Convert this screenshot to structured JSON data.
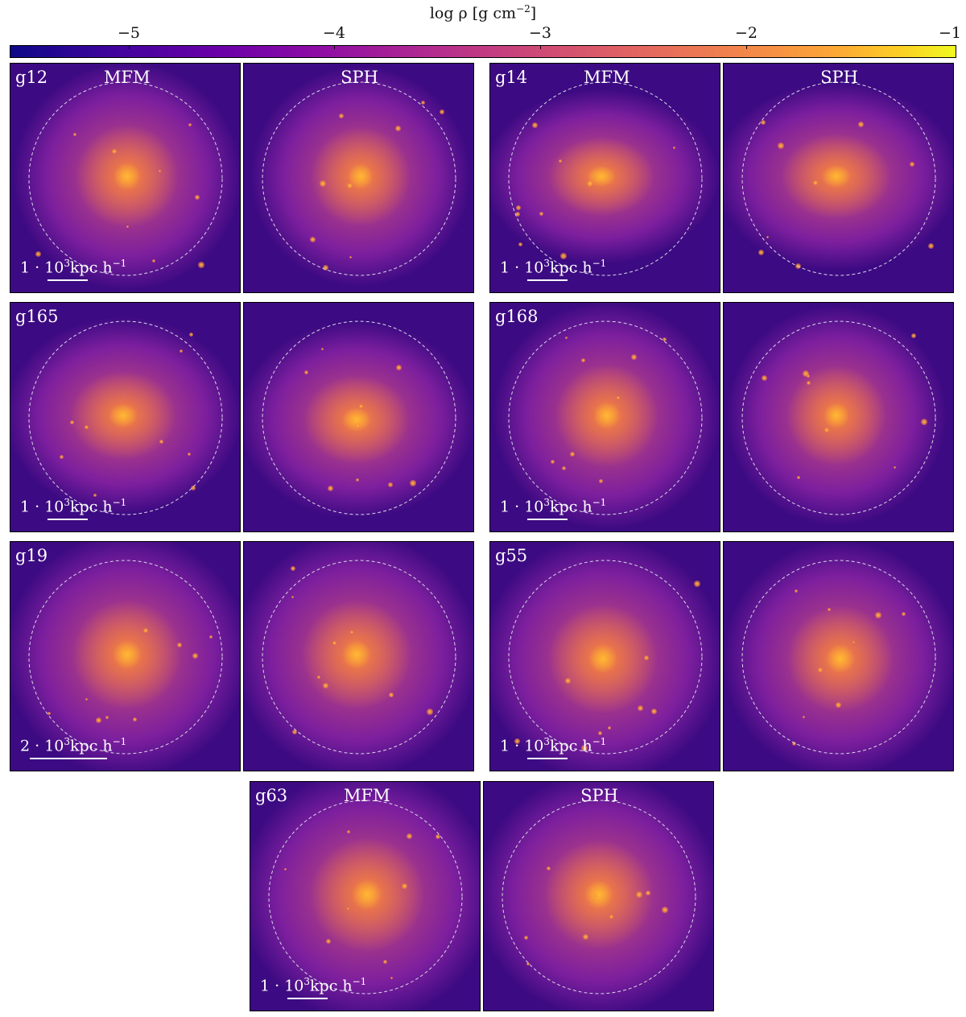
{
  "colorbar": {
    "label_main": "log ρ [g cm",
    "label_exp": "−2",
    "label_end": "]",
    "tick_labels": [
      "−5",
      "−4",
      "−3",
      "−2",
      "−1"
    ],
    "tick_values": [
      -5,
      -4,
      -3,
      -2,
      -1
    ],
    "range": [
      -5.6,
      -1.0
    ],
    "colormap": "plasma"
  },
  "panels": {
    "g12": {
      "id": "g12",
      "mfm": "MFM",
      "sph": "SPH",
      "scale_text": "1 · 10",
      "scale_exp": "3",
      "scale_unit": "kpc h",
      "scale_unit_exp": "−1"
    },
    "g14": {
      "id": "g14",
      "mfm": "MFM",
      "sph": "SPH",
      "scale_text": "1 · 10",
      "scale_exp": "3",
      "scale_unit": "kpc h",
      "scale_unit_exp": "−1"
    },
    "g165": {
      "id": "g165",
      "scale_text": "1 · 10",
      "scale_exp": "3",
      "scale_unit": "kpc h",
      "scale_unit_exp": "−1"
    },
    "g168": {
      "id": "g168",
      "scale_text": "1 · 10",
      "scale_exp": "3",
      "scale_unit": "kpc h",
      "scale_unit_exp": "−1"
    },
    "g19": {
      "id": "g19",
      "scale_text": "2 · 10",
      "scale_exp": "3",
      "scale_unit": "kpc h",
      "scale_unit_exp": "−1"
    },
    "g55": {
      "id": "g55",
      "scale_text": "1 · 10",
      "scale_exp": "3",
      "scale_unit": "kpc h",
      "scale_unit_exp": "−1"
    },
    "g63": {
      "id": "g63",
      "mfm": "MFM",
      "sph": "SPH",
      "scale_text": "1 · 10",
      "scale_exp": "3",
      "scale_unit": "kpc h",
      "scale_unit_exp": "−1"
    }
  },
  "colors": {
    "core": "#ffb833",
    "inner": "#f5823c",
    "mid": "#cf5272",
    "outer": "#7d1f9e",
    "edge": "#3c0a82"
  }
}
